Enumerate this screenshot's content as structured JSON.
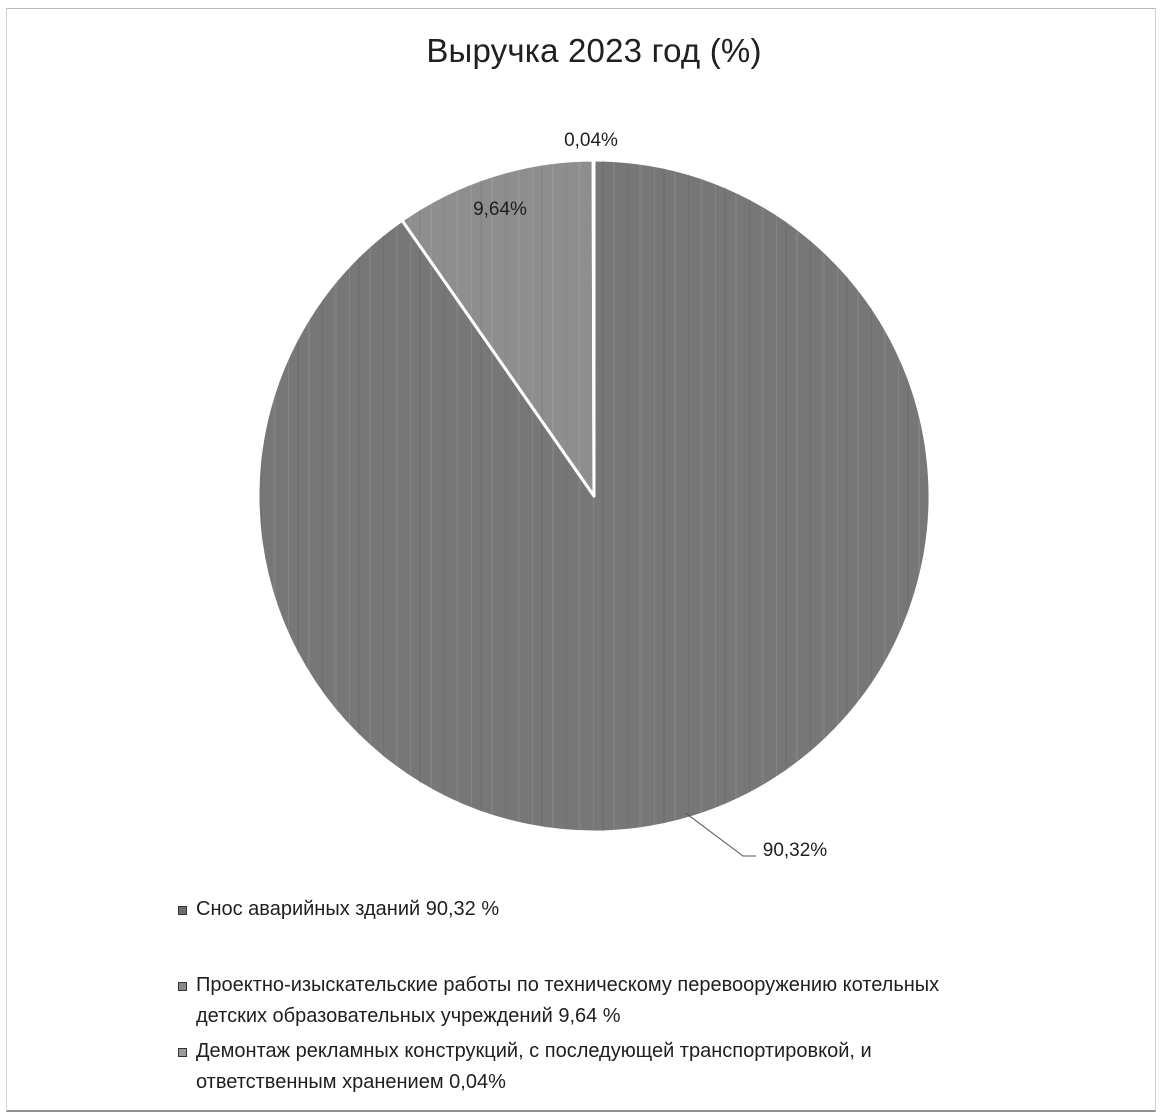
{
  "chart_data": {
    "type": "pie",
    "title": "Выручка 2023 год (%)",
    "slices": [
      {
        "value": 90.32,
        "data_label": "90,32%",
        "legend_lines": [
          "Снос аварийных зданий 90,32 %"
        ],
        "color": "#777777"
      },
      {
        "value": 9.64,
        "data_label": "9,64%",
        "legend_lines": [
          "Проектно-изыскательские работы по техническому перевооружению котельных",
          "детских образовательных учреждений 9,64 %"
        ],
        "color": "#8e8e8e"
      },
      {
        "value": 0.04,
        "data_label": "0,04%",
        "legend_lines": [
          "Демонтаж рекламных конструкций, с последующей транспортировкой, и",
          "ответственным хранением  0,04%"
        ],
        "color": "#a0a0a0"
      }
    ],
    "legend_position": "bottom",
    "start_angle_deg": 0,
    "direction": "clockwise"
  }
}
